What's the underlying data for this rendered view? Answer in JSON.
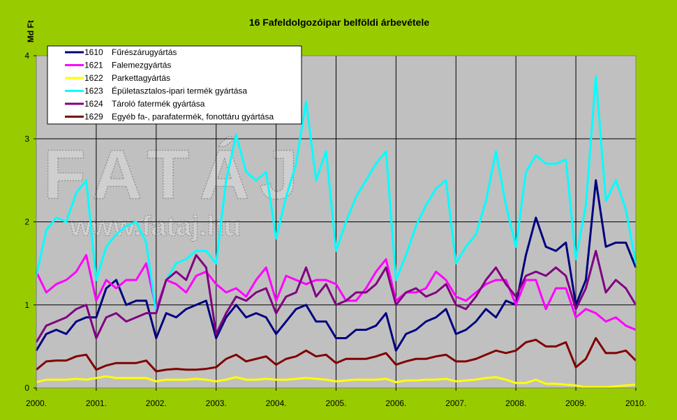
{
  "chart_data": {
    "type": "line",
    "title": "16 Fafeldolgozóipar belföldi árbevétele",
    "ylabel": "Md Ft",
    "xlabel": "",
    "ylim": [
      0,
      4
    ],
    "yticks": [
      "0",
      "1",
      "2",
      "3",
      "4"
    ],
    "xticks": [
      "2000.",
      "2001.",
      "2002.",
      "2003.",
      "2004.",
      "2005.",
      "2006.",
      "2007.",
      "2008.",
      "2009.",
      "2010."
    ],
    "grid": true,
    "legend_position": "top-left",
    "watermark": {
      "logo": "FATÁJ",
      "url": "www.fataj.hu"
    },
    "dates": [
      "2000-01",
      "2000-03",
      "2000-05",
      "2000-07",
      "2000-09",
      "2000-11",
      "2001-01",
      "2001-03",
      "2001-05",
      "2001-07",
      "2001-09",
      "2001-11",
      "2002-01",
      "2002-03",
      "2002-05",
      "2002-07",
      "2002-09",
      "2002-11",
      "2003-01",
      "2003-03",
      "2003-05",
      "2003-07",
      "2003-09",
      "2003-11",
      "2004-01",
      "2004-03",
      "2004-05",
      "2004-07",
      "2004-09",
      "2004-11",
      "2005-01",
      "2005-03",
      "2005-05",
      "2005-07",
      "2005-09",
      "2005-11",
      "2006-01",
      "2006-03",
      "2006-05",
      "2006-07",
      "2006-09",
      "2006-11",
      "2007-01",
      "2007-03",
      "2007-05",
      "2007-07",
      "2007-09",
      "2007-11",
      "2008-01",
      "2008-03",
      "2008-05",
      "2008-07",
      "2008-09",
      "2008-11",
      "2009-01",
      "2009-03",
      "2009-05",
      "2009-07",
      "2009-09",
      "2009-11",
      "2010-01"
    ],
    "series": [
      {
        "code": "1610",
        "name": "Fűrészárugyártás",
        "color": "#000080",
        "values": [
          0.45,
          0.65,
          0.7,
          0.65,
          0.8,
          0.85,
          0.85,
          1.2,
          1.3,
          1.0,
          1.05,
          1.05,
          0.6,
          0.9,
          0.85,
          0.95,
          1.0,
          1.05,
          0.6,
          0.85,
          1.0,
          0.85,
          0.9,
          0.85,
          0.65,
          0.8,
          0.95,
          1.0,
          0.8,
          0.8,
          0.6,
          0.6,
          0.7,
          0.7,
          0.75,
          0.9,
          0.45,
          0.65,
          0.7,
          0.8,
          0.85,
          0.95,
          0.65,
          0.7,
          0.8,
          0.95,
          0.85,
          1.05,
          1.0,
          1.6,
          2.05,
          1.7,
          1.65,
          1.75,
          1.0,
          1.3,
          2.5,
          1.7,
          1.75,
          1.75,
          1.45
        ]
      },
      {
        "code": "1621",
        "name": "Falemezgyártás",
        "color": "#ff00ff",
        "values": [
          1.4,
          1.15,
          1.25,
          1.3,
          1.4,
          1.6,
          1.05,
          1.3,
          1.2,
          1.3,
          1.3,
          1.5,
          0.95,
          1.3,
          1.25,
          1.15,
          1.35,
          1.4,
          1.25,
          1.15,
          1.2,
          1.1,
          1.3,
          1.45,
          1.05,
          1.35,
          1.3,
          1.25,
          1.3,
          1.3,
          1.25,
          1.05,
          1.05,
          1.2,
          1.4,
          1.55,
          1.05,
          1.15,
          1.15,
          1.2,
          1.4,
          1.3,
          1.1,
          1.05,
          1.15,
          1.25,
          1.3,
          1.3,
          1.0,
          1.3,
          1.3,
          0.95,
          1.2,
          1.2,
          0.85,
          0.95,
          0.9,
          0.8,
          0.85,
          0.75,
          0.7
        ]
      },
      {
        "code": "1622",
        "name": "Parkettagyártás",
        "color": "#ffff00",
        "values": [
          0.07,
          0.1,
          0.1,
          0.1,
          0.11,
          0.1,
          0.12,
          0.14,
          0.12,
          0.12,
          0.12,
          0.12,
          0.08,
          0.1,
          0.1,
          0.1,
          0.11,
          0.1,
          0.08,
          0.1,
          0.13,
          0.1,
          0.1,
          0.11,
          0.1,
          0.1,
          0.11,
          0.12,
          0.11,
          0.1,
          0.08,
          0.09,
          0.1,
          0.1,
          0.1,
          0.11,
          0.07,
          0.09,
          0.09,
          0.1,
          0.1,
          0.11,
          0.08,
          0.09,
          0.1,
          0.12,
          0.13,
          0.1,
          0.06,
          0.06,
          0.1,
          0.05,
          0.05,
          0.04,
          0.03,
          0.01,
          0.01,
          0.01,
          0.02,
          0.03,
          0.04
        ]
      },
      {
        "code": "1623",
        "name": "Épületasztalos-ipari termék gyártása",
        "color": "#00ffff",
        "values": [
          1.35,
          1.9,
          2.05,
          2.0,
          2.35,
          2.5,
          1.3,
          1.7,
          1.85,
          1.95,
          2.0,
          1.75,
          0.9,
          1.3,
          1.5,
          1.55,
          1.65,
          1.65,
          1.5,
          2.5,
          3.05,
          2.6,
          2.5,
          2.6,
          1.8,
          2.3,
          2.7,
          3.45,
          2.5,
          2.85,
          1.65,
          2.0,
          2.3,
          2.5,
          2.7,
          2.85,
          1.3,
          1.6,
          1.95,
          2.2,
          2.4,
          2.5,
          1.5,
          1.7,
          1.85,
          2.25,
          2.85,
          2.2,
          1.7,
          2.6,
          2.8,
          2.7,
          2.7,
          2.75,
          1.55,
          2.2,
          3.75,
          2.25,
          2.5,
          2.15,
          1.5
        ]
      },
      {
        "code": "1624",
        "name": "Tároló fatermék gyártása",
        "color": "#800080",
        "values": [
          0.55,
          0.75,
          0.8,
          0.85,
          0.95,
          1.0,
          0.6,
          0.85,
          0.9,
          0.8,
          0.85,
          0.9,
          0.9,
          1.3,
          1.4,
          1.3,
          1.6,
          1.45,
          0.65,
          0.9,
          1.1,
          1.05,
          1.15,
          1.2,
          0.9,
          1.1,
          1.15,
          1.45,
          1.1,
          1.25,
          1.0,
          1.05,
          1.15,
          1.15,
          1.25,
          1.45,
          1.0,
          1.15,
          1.2,
          1.1,
          1.15,
          1.25,
          1.0,
          0.95,
          1.1,
          1.3,
          1.45,
          1.25,
          1.1,
          1.35,
          1.4,
          1.35,
          1.45,
          1.35,
          0.95,
          1.2,
          1.65,
          1.15,
          1.3,
          1.2,
          1.0
        ]
      },
      {
        "code": "1629",
        "name": "Egyéb fa-, parafatermék, fonottáru gyártása",
        "color": "#800000",
        "values": [
          0.22,
          0.32,
          0.33,
          0.33,
          0.38,
          0.4,
          0.22,
          0.27,
          0.3,
          0.3,
          0.3,
          0.33,
          0.2,
          0.22,
          0.23,
          0.22,
          0.22,
          0.23,
          0.25,
          0.35,
          0.4,
          0.32,
          0.35,
          0.38,
          0.28,
          0.35,
          0.38,
          0.45,
          0.38,
          0.4,
          0.3,
          0.35,
          0.35,
          0.35,
          0.38,
          0.42,
          0.28,
          0.32,
          0.35,
          0.35,
          0.38,
          0.4,
          0.32,
          0.32,
          0.35,
          0.4,
          0.45,
          0.42,
          0.45,
          0.55,
          0.58,
          0.5,
          0.5,
          0.55,
          0.25,
          0.35,
          0.6,
          0.42,
          0.42,
          0.45,
          0.33
        ]
      }
    ]
  }
}
